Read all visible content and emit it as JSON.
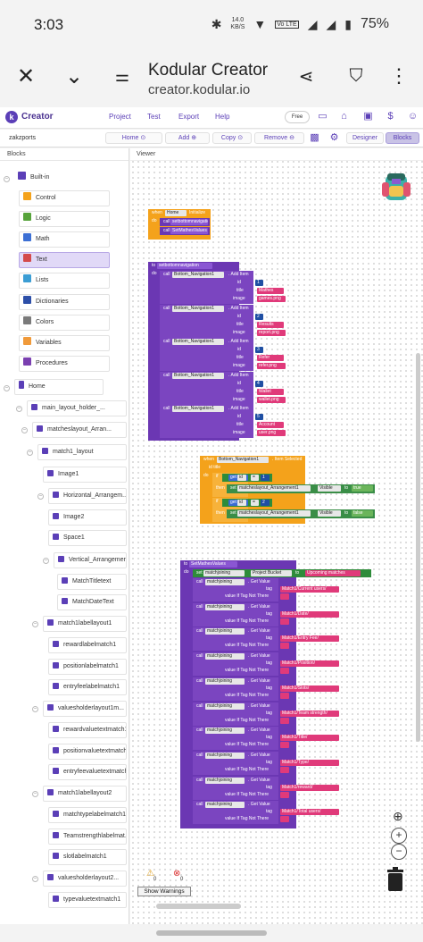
{
  "status_bar": {
    "time": "3:03",
    "net_speed": "14.0",
    "net_unit": "KB/S",
    "volte": "Vo LTE",
    "battery": "75%"
  },
  "browser": {
    "title": "Kodular Creator",
    "url": "creator.kodular.io"
  },
  "appbar": {
    "brand": "Creator",
    "menu": [
      "Project",
      "Test",
      "Export",
      "Help"
    ],
    "free_label": "Free"
  },
  "toolbar": {
    "project": "zakzports",
    "home": "Home",
    "add": "Add",
    "copy": "Copy",
    "remove": "Remove",
    "designer": "Designer",
    "blocks": "Blocks"
  },
  "left_pane": {
    "header": "Blocks",
    "builtin_label": "Built-in",
    "builtin": [
      {
        "label": "Control",
        "color": "#f4a21b"
      },
      {
        "label": "Logic",
        "color": "#56a33a"
      },
      {
        "label": "Math",
        "color": "#3b6fd4"
      },
      {
        "label": "Text",
        "color": "#d44a4a"
      },
      {
        "label": "Lists",
        "color": "#3b9dd4"
      },
      {
        "label": "Dictionaries",
        "color": "#2d4fa8"
      },
      {
        "label": "Colors",
        "color": "#7a7a7a"
      },
      {
        "label": "Variables",
        "color": "#f09a3a"
      },
      {
        "label": "Procedures",
        "color": "#7a3fb0"
      }
    ],
    "home_label": "Home",
    "tree": [
      "main_layout_holder_...",
      "matcheslayout_Arran...",
      "match1_layout",
      "Image1",
      "Horizontal_Arrangem...",
      "Image2",
      "Space1",
      "Vertical_Arrangement1",
      "MatchTitletext",
      "MatchDateText",
      "match1labellayout1",
      "rewardlabelmatch1",
      "positionlabelmatch1",
      "entryfeelabelmatch1",
      "valuesholderlayout1m...",
      "rewardvaluetextmatch1",
      "positionvaluetextmatch1",
      "entryfeevaluetextmatch1",
      "match1labellayout2",
      "matchtypelabelmatch1",
      "Teamstrengthlabelmat...",
      "slotlabelmatch1",
      "valuesholderlayout2...",
      "typevaluetextmatch1"
    ]
  },
  "viewer": {
    "header": "Viewer",
    "block_when_home": {
      "when": "when",
      "comp": "Home",
      "event": "Initialize",
      "do": "do",
      "call": "call",
      "p1": "setbottomnavigation",
      "p2": "SetMathesValues"
    },
    "block_proc_nav": {
      "to": "to",
      "name": "setbottomnavigation",
      "do": "do",
      "call": "call",
      "comp": "Bottom_Navigation1",
      "method": ". Add Item",
      "id_lbl": "id",
      "title_lbl": "title",
      "image_lbl": "image",
      "items": [
        {
          "id": "1",
          "title": "Mathes",
          "image": "games.png"
        },
        {
          "id": "2",
          "title": "Results",
          "image": "report.png"
        },
        {
          "id": "3",
          "title": "Refer",
          "image": "refer.png"
        },
        {
          "id": "4",
          "title": "Wallet",
          "image": "wallet.png"
        },
        {
          "id": "5",
          "title": "Account",
          "image": "user.png"
        }
      ]
    },
    "block_item_selected": {
      "when": "when",
      "comp": "Bottom_Navigation1",
      "event": ". Item Selected",
      "params": "id  title",
      "do": "do",
      "if": "if",
      "then": "then",
      "get": "get",
      "id": "id",
      "eq": "=",
      "set": "set",
      "target": "matcheslayout_Arrangement1",
      "prop": "Visible",
      "to": "to",
      "cond1": "1",
      "val1": "true",
      "cond2": "2",
      "val2": "false"
    },
    "block_set_values": {
      "to": "to",
      "name": "SetMathesValues",
      "do": "do",
      "set": "set",
      "target": "matchjoining",
      "prop": "Project Bucket",
      "to_lbl": "to",
      "value": "Upcoming matches",
      "call": "call",
      "getvalue": ". Get Value",
      "tag_lbl": "tag",
      "vnt_lbl": "value If Tag Not There",
      "tags": [
        "Match1/Current users/",
        "Match1/Date/",
        "Match1/Entry Fee/",
        "Match1/Position/",
        "Match1/Slots/",
        "Match1/Team strength/",
        "Match1/Title/",
        "Match1/Type/",
        "Match1/reward/",
        "Match1/Total users/"
      ]
    },
    "warnings": {
      "warn_count": "0",
      "err_count": "0",
      "button": "Show Warnings"
    }
  },
  "colors": {
    "kodular_purple": "#5b3fb7",
    "block_purple": "#6b37b3",
    "block_orange": "#f4a21b",
    "text_pink": "#e03a7a"
  }
}
